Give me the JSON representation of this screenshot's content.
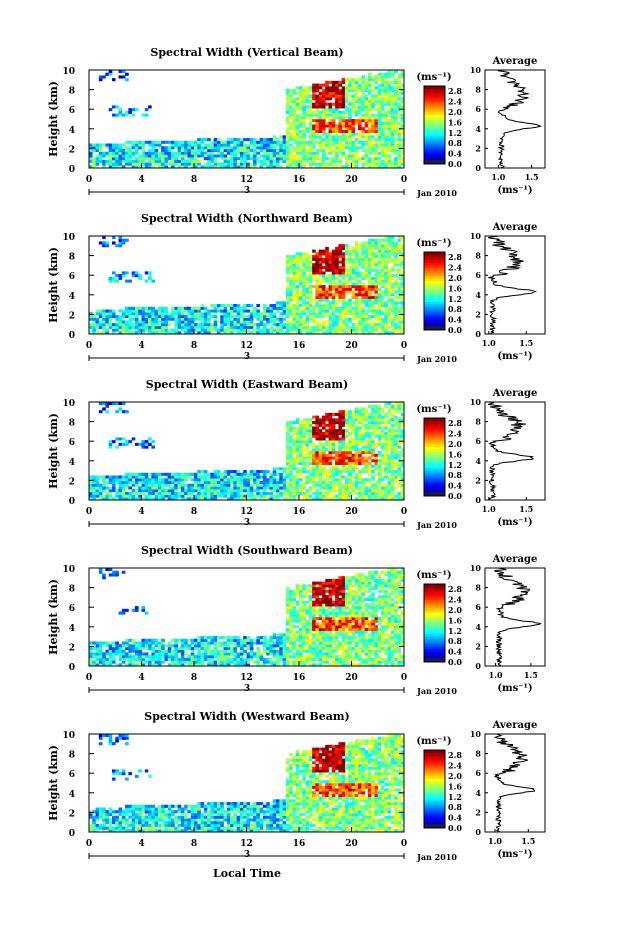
{
  "chart_data": [
    {
      "type": "heatmap",
      "title": "Spectral Width (Vertical Beam)",
      "ylabel": "Height (km)",
      "yticks": [
        "0",
        "2",
        "4",
        "6",
        "8",
        "10"
      ],
      "xticks": [
        "0",
        "4",
        "8",
        "12",
        "16",
        "20",
        "0"
      ],
      "day_label": "3",
      "date_label": "Jan 2010",
      "xlim": [
        0,
        24
      ],
      "ylim": [
        0,
        10
      ],
      "colorbar": {
        "unit": "(ms⁻¹)",
        "ticks": [
          "0.0",
          "0.4",
          "0.8",
          "1.2",
          "1.6",
          "2.0",
          "2.4",
          "2.8"
        ],
        "range": [
          0,
          3.0
        ]
      },
      "average": {
        "title": "Average",
        "xlabel": "(ms⁻¹)",
        "xticks": [
          "1.0",
          "1.5"
        ],
        "xlim": [
          0.8,
          1.7
        ],
        "ylim": [
          0,
          10
        ],
        "yticks": [
          "0",
          "2",
          "4",
          "6",
          "8",
          "10"
        ]
      }
    },
    {
      "type": "heatmap",
      "title": "Spectral Width (Northward Beam)",
      "ylabel": "Height (km)",
      "yticks": [
        "0",
        "2",
        "4",
        "6",
        "8",
        "10"
      ],
      "xticks": [
        "0",
        "4",
        "8",
        "12",
        "16",
        "20",
        "0"
      ],
      "day_label": "3",
      "date_label": "Jan 2010",
      "xlim": [
        0,
        24
      ],
      "ylim": [
        0,
        10
      ],
      "colorbar": {
        "unit": "(ms⁻¹)",
        "ticks": [
          "0.0",
          "0.4",
          "0.8",
          "1.2",
          "1.6",
          "2.0",
          "2.4",
          "2.8"
        ],
        "range": [
          0,
          3.0
        ]
      },
      "average": {
        "title": "Average",
        "xlabel": "(ms⁻¹)",
        "xticks": [
          "1.0",
          "1.5"
        ],
        "xlim": [
          0.95,
          1.75
        ],
        "ylim": [
          0,
          10
        ],
        "yticks": [
          "0",
          "2",
          "4",
          "6",
          "8",
          "10"
        ]
      }
    },
    {
      "type": "heatmap",
      "title": "Spectral Width (Eastward Beam)",
      "ylabel": "Height (km)",
      "yticks": [
        "0",
        "2",
        "4",
        "6",
        "8",
        "10"
      ],
      "xticks": [
        "0",
        "4",
        "8",
        "12",
        "16",
        "20",
        "0"
      ],
      "day_label": "3",
      "date_label": "Jan 2010",
      "xlim": [
        0,
        24
      ],
      "ylim": [
        0,
        10
      ],
      "colorbar": {
        "unit": "(ms⁻¹)",
        "ticks": [
          "0.0",
          "0.4",
          "0.8",
          "1.2",
          "1.6",
          "2.0",
          "2.4",
          "2.8"
        ],
        "range": [
          0,
          3.0
        ]
      },
      "average": {
        "title": "Average",
        "xlabel": "(ms⁻¹)",
        "xticks": [
          "1.0",
          "1.5"
        ],
        "xlim": [
          0.95,
          1.75
        ],
        "ylim": [
          0,
          10
        ],
        "yticks": [
          "0",
          "2",
          "4",
          "6",
          "8",
          "10"
        ]
      }
    },
    {
      "type": "heatmap",
      "title": "Spectral Width (Southward Beam)",
      "ylabel": "Height (km)",
      "yticks": [
        "0",
        "2",
        "4",
        "6",
        "8",
        "10"
      ],
      "xticks": [
        "0",
        "4",
        "8",
        "12",
        "16",
        "20",
        "0"
      ],
      "day_label": "3",
      "date_label": "Jan 2010",
      "xlim": [
        0,
        24
      ],
      "ylim": [
        0,
        10
      ],
      "colorbar": {
        "unit": "(ms⁻¹)",
        "ticks": [
          "0.0",
          "0.4",
          "0.8",
          "1.2",
          "1.6",
          "2.0",
          "2.4",
          "2.8"
        ],
        "range": [
          0,
          3.0
        ]
      },
      "average": {
        "title": "Average",
        "xlabel": "(ms⁻¹)",
        "xticks": [
          "1.0",
          "1.5"
        ],
        "xlim": [
          0.85,
          1.7
        ],
        "ylim": [
          0,
          10
        ],
        "yticks": [
          "0",
          "2",
          "4",
          "6",
          "8",
          "10"
        ]
      }
    },
    {
      "type": "heatmap",
      "title": "Spectral Width (Westward Beam)",
      "ylabel": "Height (km)",
      "yticks": [
        "0",
        "2",
        "4",
        "6",
        "8",
        "10"
      ],
      "xticks": [
        "0",
        "4",
        "8",
        "12",
        "16",
        "20",
        "0"
      ],
      "day_label": "3",
      "date_label": "Jan 2010",
      "xlabel": "Local Time",
      "xlim": [
        0,
        24
      ],
      "ylim": [
        0,
        10
      ],
      "colorbar": {
        "unit": "(ms⁻¹)",
        "ticks": [
          "0.0",
          "0.4",
          "0.8",
          "1.2",
          "1.6",
          "2.0",
          "2.4",
          "2.8"
        ],
        "range": [
          0,
          3.0
        ]
      },
      "average": {
        "title": "Average",
        "xlabel": "(ms⁻¹)",
        "xticks": [
          "1.0",
          "1.5"
        ],
        "xlim": [
          0.85,
          1.75
        ],
        "ylim": [
          0,
          10
        ],
        "yticks": [
          "0",
          "2",
          "4",
          "6",
          "8",
          "10"
        ]
      }
    }
  ]
}
